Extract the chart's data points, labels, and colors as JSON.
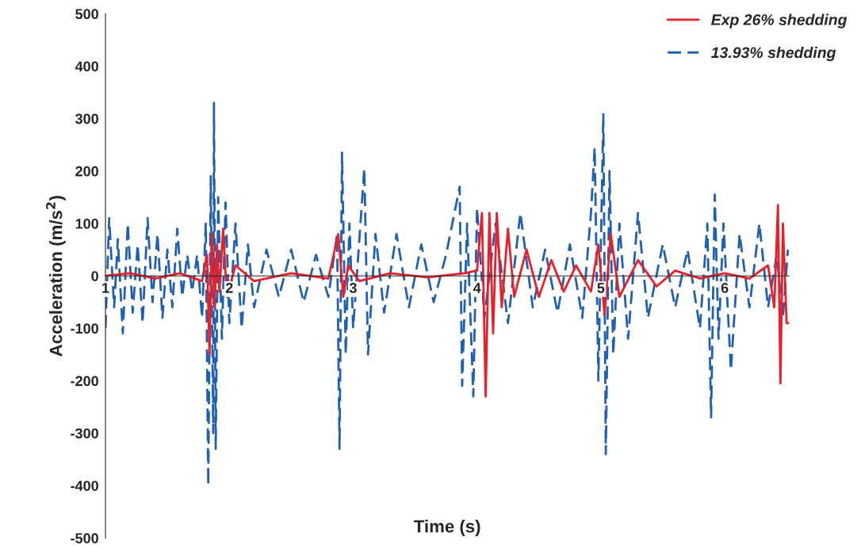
{
  "chart_data": {
    "type": "line",
    "xlabel": "Time (s)",
    "ylabel": "Acceleration (m/s$^{2}$)",
    "xlim": [
      1,
      6.52
    ],
    "xticks": [
      1,
      2,
      3,
      4,
      5,
      6
    ],
    "ylim": [
      -500,
      500
    ],
    "yticks": [
      -500,
      -400,
      -300,
      -200,
      -100,
      0,
      100,
      200,
      300,
      400,
      500
    ],
    "grid": false,
    "legend": "top right",
    "series": [
      {
        "name": "Exp 26% shedding",
        "color": "#e8202a",
        "line_style": "solid",
        "x": [
          1.0,
          1.2,
          1.4,
          1.6,
          1.78,
          1.82,
          1.84,
          1.86,
          1.88,
          1.9,
          1.92,
          1.95,
          1.98,
          2.05,
          2.2,
          2.5,
          2.8,
          2.88,
          2.92,
          2.96,
          3.05,
          3.3,
          3.6,
          3.9,
          4.0,
          4.04,
          4.07,
          4.1,
          4.13,
          4.16,
          4.2,
          4.25,
          4.3,
          4.4,
          4.5,
          4.6,
          4.7,
          4.8,
          4.92,
          4.98,
          5.03,
          5.08,
          5.15,
          5.3,
          5.45,
          5.6,
          5.8,
          6.0,
          6.2,
          6.35,
          6.4,
          6.43,
          6.45,
          6.47,
          6.5,
          6.52
        ],
        "values": [
          0,
          5,
          -5,
          5,
          -10,
          40,
          -150,
          80,
          -60,
          60,
          -30,
          90,
          -40,
          20,
          -10,
          5,
          -5,
          80,
          -40,
          20,
          -10,
          5,
          -3,
          5,
          10,
          120,
          -230,
          120,
          -110,
          120,
          -60,
          90,
          -40,
          50,
          -40,
          30,
          -30,
          20,
          -30,
          60,
          -75,
          80,
          -40,
          30,
          -20,
          10,
          -5,
          5,
          -5,
          20,
          -60,
          135,
          -205,
          100,
          -90,
          -90
        ]
      },
      {
        "name": "13.93% shedding",
        "color": "#1f5fb4",
        "line_style": "dashed",
        "x": [
          1.0,
          1.03,
          1.07,
          1.1,
          1.14,
          1.18,
          1.22,
          1.26,
          1.3,
          1.34,
          1.38,
          1.42,
          1.46,
          1.5,
          1.54,
          1.58,
          1.62,
          1.66,
          1.7,
          1.74,
          1.78,
          1.81,
          1.83,
          1.85,
          1.87,
          1.876,
          1.89,
          1.91,
          1.94,
          1.97,
          2.0,
          2.05,
          2.1,
          2.15,
          2.2,
          2.3,
          2.4,
          2.5,
          2.6,
          2.7,
          2.8,
          2.87,
          2.89,
          2.91,
          2.94,
          2.97,
          3.0,
          3.09,
          3.12,
          3.18,
          3.25,
          3.35,
          3.45,
          3.55,
          3.65,
          3.75,
          3.86,
          3.88,
          3.92,
          3.97,
          4.0,
          4.06,
          4.15,
          4.25,
          4.35,
          4.45,
          4.55,
          4.65,
          4.75,
          4.85,
          4.92,
          4.95,
          4.98,
          5.02,
          5.04,
          5.07,
          5.1,
          5.15,
          5.22,
          5.3,
          5.38,
          5.5,
          5.6,
          5.7,
          5.8,
          5.86,
          5.89,
          5.92,
          5.95,
          5.99,
          6.05,
          6.12,
          6.2,
          6.28,
          6.35,
          6.42,
          6.47,
          6.51
        ],
        "values": [
          -100,
          110,
          -60,
          70,
          -110,
          100,
          -70,
          60,
          -90,
          110,
          -50,
          80,
          -80,
          50,
          -60,
          90,
          -40,
          40,
          -30,
          40,
          -80,
          100,
          -400,
          190,
          -300,
          330,
          -330,
          150,
          -120,
          140,
          -90,
          100,
          -100,
          60,
          -60,
          50,
          -40,
          50,
          -50,
          40,
          -40,
          80,
          -330,
          235,
          -150,
          100,
          -100,
          205,
          -150,
          80,
          -70,
          80,
          -60,
          60,
          -50,
          40,
          170,
          -210,
          100,
          -230,
          130,
          -80,
          100,
          -90,
          120,
          -60,
          50,
          -70,
          60,
          -80,
          120,
          245,
          -200,
          310,
          -340,
          200,
          -150,
          100,
          -120,
          120,
          -80,
          60,
          -60,
          50,
          -100,
          100,
          -270,
          155,
          -120,
          100,
          -180,
          80,
          -60,
          100,
          -60,
          40,
          -80,
          50
        ]
      }
    ]
  }
}
